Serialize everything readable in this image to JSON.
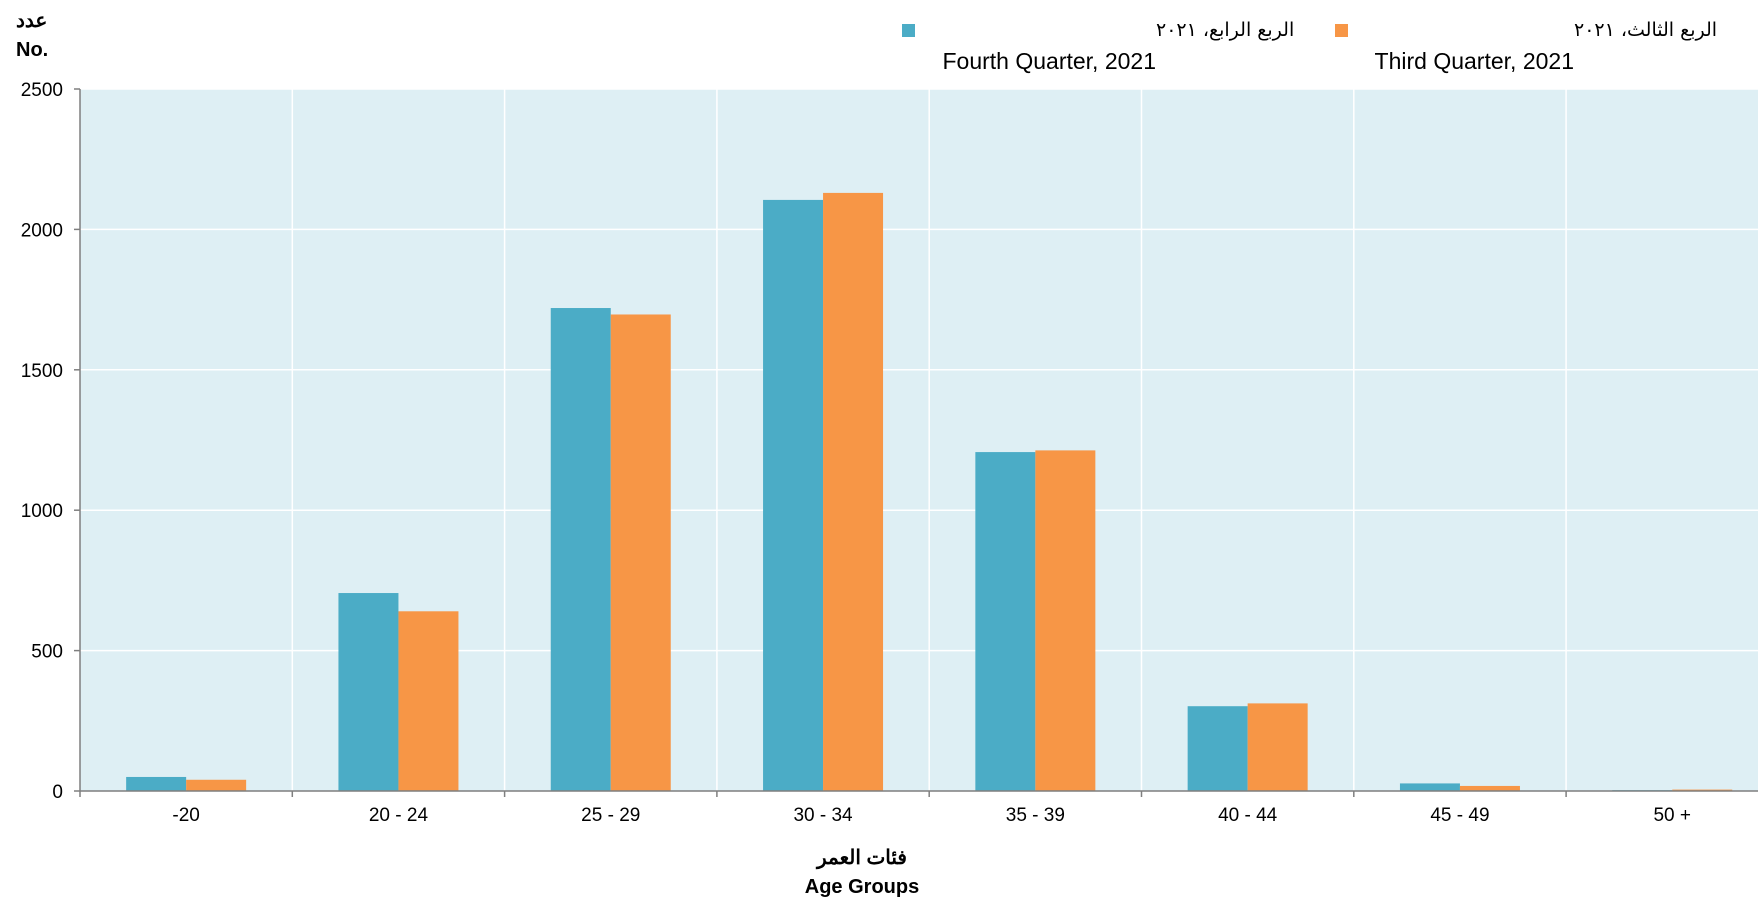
{
  "chart_data": {
    "type": "bar",
    "categories": [
      "-20",
      "20 - 24",
      "25 - 29",
      "30 - 34",
      "35 - 39",
      "40 - 44",
      "45 - 49",
      "50 +"
    ],
    "series": [
      {
        "name": "Fourth Quarter, 2021",
        "name_ar": "الربع الرابع، ٢٠٢١",
        "color": "#4BACC6",
        "values": [
          50,
          705,
          1720,
          2105,
          1207,
          302,
          27,
          3
        ]
      },
      {
        "name": "Third Quarter, 2021",
        "name_ar": "الربع الثالث، ٢٠٢١",
        "color": "#F79646",
        "values": [
          40,
          640,
          1697,
          2130,
          1213,
          312,
          18,
          5
        ]
      }
    ],
    "ylabel_ar": "عدد",
    "ylabel": "No.",
    "xlabel_ar": "فئات العمر",
    "xlabel": "Age Groups",
    "ylim": [
      0,
      2500
    ],
    "yticks": [
      0,
      500,
      1000,
      1500,
      2000,
      2500
    ],
    "grid": true,
    "legend_position": "top-right",
    "plot_background": "#DEEFF4"
  }
}
